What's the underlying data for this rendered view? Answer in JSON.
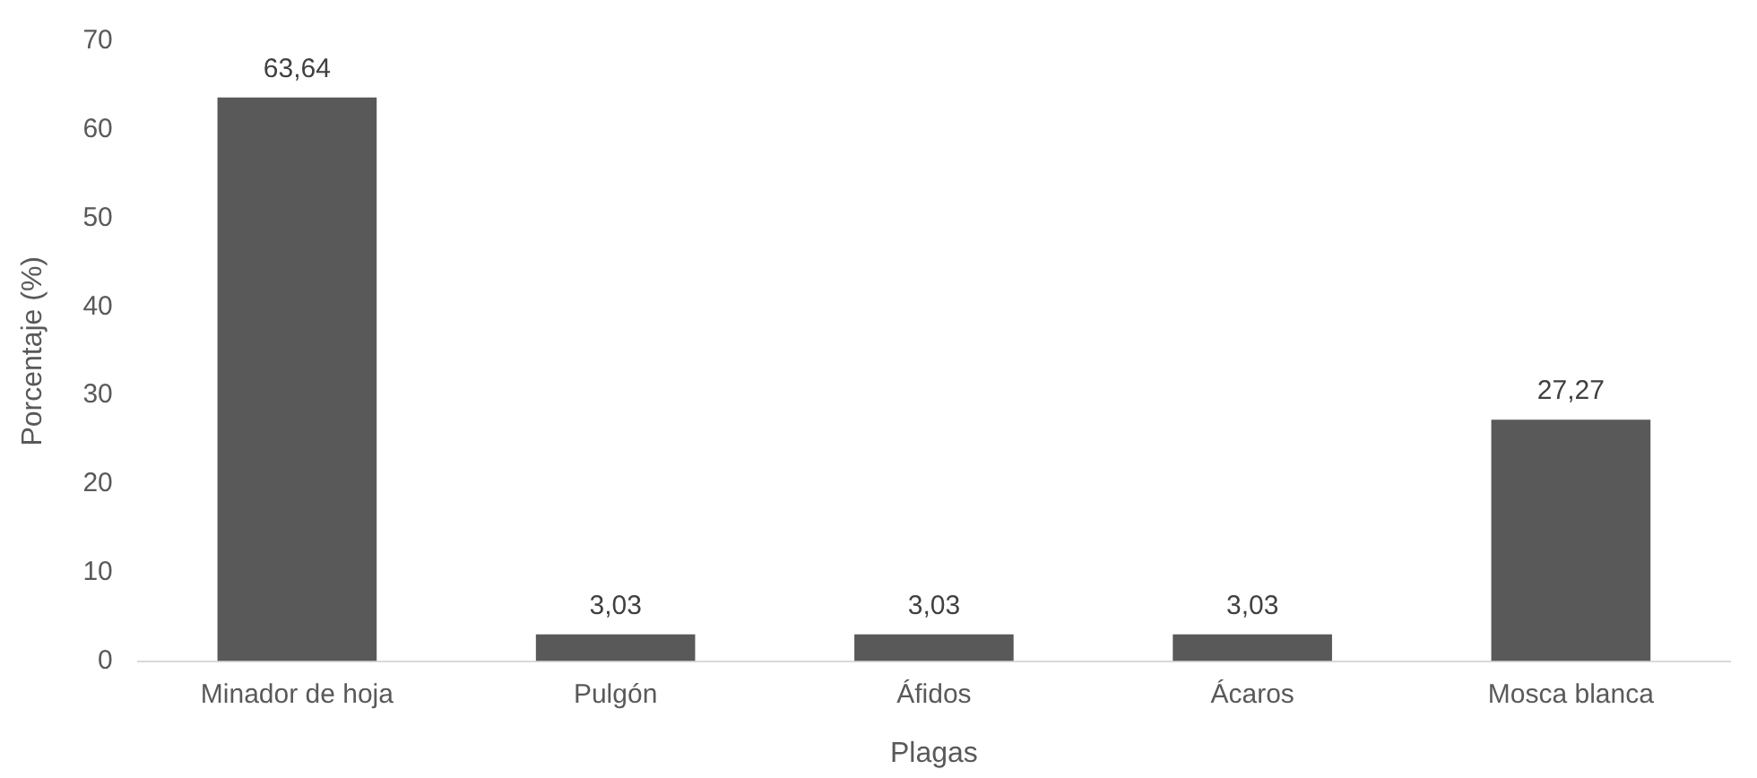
{
  "chart_data": {
    "type": "bar",
    "xlabel": "Plagas",
    "ylabel": "Porcentaje (%)",
    "categories": [
      "Minador de hoja",
      "Pulgón",
      "Áfidos",
      "Ácaros",
      "Mosca blanca"
    ],
    "values": [
      63.64,
      3.03,
      3.03,
      3.03,
      27.27
    ],
    "value_labels": [
      "63,64",
      "3,03",
      "3,03",
      "3,03",
      "27,27"
    ],
    "color": "#595959",
    "ylim": [
      0,
      70
    ],
    "yticks": [
      0,
      10,
      20,
      30,
      40,
      50,
      60,
      70
    ],
    "grid": false,
    "legend": false
  }
}
